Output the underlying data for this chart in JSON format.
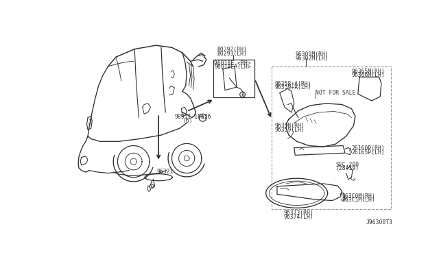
{
  "bg": "white",
  "lc": "#333333",
  "tc": "#333333",
  "fs": 5.8,
  "diagram_id": "J96300T3",
  "labels": {
    "b0292": "B0292(RH)\nB0293(LH)",
    "96018e": "96018E <RH>\n96018EA(LH>",
    "96301m": "96301M(RH)\n96302M(LH)",
    "96358a": "96358+A(RH)\n96359+A(LH)",
    "96365m": "96365M(RH)\n96366M(LH)",
    "not_for_sale": "NOT FOR SALE",
    "96358": "96358(RH)\n96359(LH)",
    "26160p": "26160P(RH)\n26165P(LH)",
    "sec200": "SEC.200\n(28419)",
    "963c0m": "963C0M(RH)\n963C1M(LH)",
    "96321": "96321",
    "96373": "96373(RH)\n96374(LH)",
    "98911": "98911-10626",
    "98911b": "(6)"
  }
}
